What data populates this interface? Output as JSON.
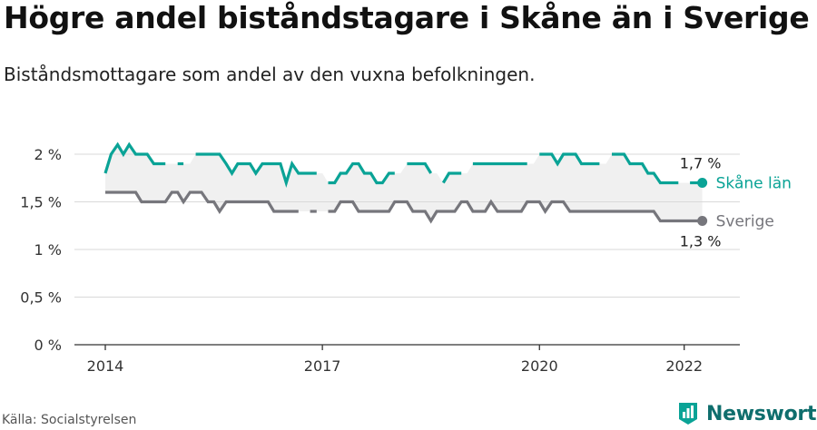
{
  "title": "Högre andel biståndstagare i Skåne än i Sverige",
  "subtitle": "Biståndsmottagare som andel av den vuxna befolkningen.",
  "source": "Källa: Socialstyrelsen",
  "brand": {
    "name": "Newsworthy",
    "icon": "newsworthy-logo-icon"
  },
  "colors": {
    "skane": "#0aa396",
    "sverige": "#76767c",
    "band": "#f0f0f0",
    "grid": "#d9d9d9",
    "axis": "#333333"
  },
  "chart_data": {
    "type": "line",
    "title": "Högre andel biståndstagare i Skåne än i Sverige",
    "subtitle": "Biståndsmottagare som andel av den vuxna befolkningen.",
    "ylim": [
      0,
      2
    ],
    "xlim": [
      2014,
      2022.33
    ],
    "yticks": [
      0,
      0.5,
      1,
      1.5,
      2
    ],
    "ytick_labels": [
      "0 %",
      "0,5 %",
      "1 %",
      "1,5 %",
      "2 %"
    ],
    "xticks": [
      2014,
      2017,
      2020,
      2022
    ],
    "xtick_labels": [
      "2014",
      "2017",
      "2020",
      "2022"
    ],
    "grid": true,
    "annotations": [
      {
        "series": "Skåne län",
        "text": "1,7 %"
      },
      {
        "series": "Sverige",
        "text": "1,3 %"
      }
    ],
    "series": [
      {
        "name": "Skåne län",
        "color": "#0aa396",
        "points": [
          [
            2014.0,
            1.8
          ],
          [
            2014.08,
            2.0
          ],
          [
            2014.17,
            2.1
          ],
          [
            2014.25,
            2.0
          ],
          [
            2014.33,
            2.1
          ],
          [
            2014.42,
            2.0
          ],
          [
            2014.5,
            2.0
          ],
          [
            2014.58,
            2.0
          ],
          [
            2014.67,
            1.9
          ],
          [
            2014.75,
            1.9
          ],
          [
            2014.83,
            1.9
          ],
          [
            2014.92,
            null
          ],
          [
            2015.0,
            1.9
          ],
          [
            2015.08,
            1.9
          ],
          [
            2015.17,
            null
          ],
          [
            2015.25,
            2.0
          ],
          [
            2015.33,
            2.0
          ],
          [
            2015.42,
            2.0
          ],
          [
            2015.5,
            2.0
          ],
          [
            2015.58,
            2.0
          ],
          [
            2015.67,
            1.9
          ],
          [
            2015.75,
            1.8
          ],
          [
            2015.83,
            1.9
          ],
          [
            2015.92,
            1.9
          ],
          [
            2016.0,
            1.9
          ],
          [
            2016.08,
            1.8
          ],
          [
            2016.17,
            1.9
          ],
          [
            2016.25,
            1.9
          ],
          [
            2016.33,
            1.9
          ],
          [
            2016.42,
            1.9
          ],
          [
            2016.5,
            1.7
          ],
          [
            2016.58,
            1.9
          ],
          [
            2016.67,
            1.8
          ],
          [
            2016.75,
            1.8
          ],
          [
            2016.83,
            1.8
          ],
          [
            2016.92,
            1.8
          ],
          [
            2017.0,
            null
          ],
          [
            2017.08,
            1.7
          ],
          [
            2017.17,
            1.7
          ],
          [
            2017.25,
            1.8
          ],
          [
            2017.33,
            1.8
          ],
          [
            2017.42,
            1.9
          ],
          [
            2017.5,
            1.9
          ],
          [
            2017.58,
            1.8
          ],
          [
            2017.67,
            1.8
          ],
          [
            2017.75,
            1.7
          ],
          [
            2017.83,
            1.7
          ],
          [
            2017.92,
            1.8
          ],
          [
            2018.0,
            1.8
          ],
          [
            2018.08,
            null
          ],
          [
            2018.17,
            1.9
          ],
          [
            2018.25,
            1.9
          ],
          [
            2018.33,
            1.9
          ],
          [
            2018.42,
            1.9
          ],
          [
            2018.5,
            1.8
          ],
          [
            2018.58,
            null
          ],
          [
            2018.67,
            1.7
          ],
          [
            2018.75,
            1.8
          ],
          [
            2018.83,
            1.8
          ],
          [
            2018.92,
            1.8
          ],
          [
            2019.0,
            null
          ],
          [
            2019.08,
            1.9
          ],
          [
            2019.17,
            1.9
          ],
          [
            2019.25,
            1.9
          ],
          [
            2019.33,
            1.9
          ],
          [
            2019.42,
            1.9
          ],
          [
            2019.5,
            1.9
          ],
          [
            2019.58,
            1.9
          ],
          [
            2019.67,
            1.9
          ],
          [
            2019.75,
            1.9
          ],
          [
            2019.83,
            1.9
          ],
          [
            2019.92,
            null
          ],
          [
            2020.0,
            2.0
          ],
          [
            2020.08,
            2.0
          ],
          [
            2020.17,
            2.0
          ],
          [
            2020.25,
            1.9
          ],
          [
            2020.33,
            2.0
          ],
          [
            2020.42,
            2.0
          ],
          [
            2020.5,
            2.0
          ],
          [
            2020.58,
            1.9
          ],
          [
            2020.67,
            1.9
          ],
          [
            2020.75,
            1.9
          ],
          [
            2020.83,
            1.9
          ],
          [
            2020.92,
            null
          ],
          [
            2021.0,
            2.0
          ],
          [
            2021.08,
            2.0
          ],
          [
            2021.17,
            2.0
          ],
          [
            2021.25,
            1.9
          ],
          [
            2021.33,
            1.9
          ],
          [
            2021.42,
            1.9
          ],
          [
            2021.5,
            1.8
          ],
          [
            2021.58,
            1.8
          ],
          [
            2021.67,
            1.7
          ],
          [
            2021.75,
            1.7
          ],
          [
            2021.83,
            1.7
          ],
          [
            2021.92,
            1.7
          ],
          [
            2022.0,
            null
          ],
          [
            2022.08,
            1.7
          ],
          [
            2022.17,
            1.7
          ],
          [
            2022.25,
            1.7
          ]
        ]
      },
      {
        "name": "Sverige",
        "color": "#76767c",
        "points": [
          [
            2014.0,
            1.6
          ],
          [
            2014.08,
            1.6
          ],
          [
            2014.17,
            1.6
          ],
          [
            2014.25,
            1.6
          ],
          [
            2014.33,
            1.6
          ],
          [
            2014.42,
            1.6
          ],
          [
            2014.5,
            1.5
          ],
          [
            2014.58,
            1.5
          ],
          [
            2014.67,
            1.5
          ],
          [
            2014.75,
            1.5
          ],
          [
            2014.83,
            1.5
          ],
          [
            2014.92,
            1.6
          ],
          [
            2015.0,
            1.6
          ],
          [
            2015.08,
            1.5
          ],
          [
            2015.17,
            1.6
          ],
          [
            2015.25,
            1.6
          ],
          [
            2015.33,
            1.6
          ],
          [
            2015.42,
            1.5
          ],
          [
            2015.5,
            1.5
          ],
          [
            2015.58,
            1.4
          ],
          [
            2015.67,
            1.5
          ],
          [
            2015.75,
            1.5
          ],
          [
            2015.83,
            1.5
          ],
          [
            2015.92,
            1.5
          ],
          [
            2016.0,
            1.5
          ],
          [
            2016.08,
            1.5
          ],
          [
            2016.17,
            1.5
          ],
          [
            2016.25,
            1.5
          ],
          [
            2016.33,
            1.4
          ],
          [
            2016.42,
            1.4
          ],
          [
            2016.5,
            1.4
          ],
          [
            2016.58,
            1.4
          ],
          [
            2016.67,
            1.4
          ],
          [
            2016.75,
            null
          ],
          [
            2016.83,
            1.4
          ],
          [
            2016.92,
            1.4
          ],
          [
            2017.0,
            null
          ],
          [
            2017.08,
            1.4
          ],
          [
            2017.17,
            1.4
          ],
          [
            2017.25,
            1.5
          ],
          [
            2017.33,
            1.5
          ],
          [
            2017.42,
            1.5
          ],
          [
            2017.5,
            1.4
          ],
          [
            2017.58,
            1.4
          ],
          [
            2017.67,
            1.4
          ],
          [
            2017.75,
            1.4
          ],
          [
            2017.83,
            1.4
          ],
          [
            2017.92,
            1.4
          ],
          [
            2018.0,
            1.5
          ],
          [
            2018.08,
            1.5
          ],
          [
            2018.17,
            1.5
          ],
          [
            2018.25,
            1.4
          ],
          [
            2018.33,
            1.4
          ],
          [
            2018.42,
            1.4
          ],
          [
            2018.5,
            1.3
          ],
          [
            2018.58,
            1.4
          ],
          [
            2018.67,
            1.4
          ],
          [
            2018.75,
            1.4
          ],
          [
            2018.83,
            1.4
          ],
          [
            2018.92,
            1.5
          ],
          [
            2019.0,
            1.5
          ],
          [
            2019.08,
            1.4
          ],
          [
            2019.17,
            1.4
          ],
          [
            2019.25,
            1.4
          ],
          [
            2019.33,
            1.5
          ],
          [
            2019.42,
            1.4
          ],
          [
            2019.5,
            1.4
          ],
          [
            2019.58,
            1.4
          ],
          [
            2019.67,
            1.4
          ],
          [
            2019.75,
            1.4
          ],
          [
            2019.83,
            1.5
          ],
          [
            2019.92,
            1.5
          ],
          [
            2020.0,
            1.5
          ],
          [
            2020.08,
            1.4
          ],
          [
            2020.17,
            1.5
          ],
          [
            2020.25,
            1.5
          ],
          [
            2020.33,
            1.5
          ],
          [
            2020.42,
            1.4
          ],
          [
            2020.5,
            1.4
          ],
          [
            2020.58,
            1.4
          ],
          [
            2020.67,
            1.4
          ],
          [
            2020.75,
            1.4
          ],
          [
            2020.83,
            1.4
          ],
          [
            2020.92,
            1.4
          ],
          [
            2021.0,
            1.4
          ],
          [
            2021.08,
            1.4
          ],
          [
            2021.17,
            1.4
          ],
          [
            2021.25,
            1.4
          ],
          [
            2021.33,
            1.4
          ],
          [
            2021.42,
            1.4
          ],
          [
            2021.5,
            1.4
          ],
          [
            2021.58,
            1.4
          ],
          [
            2021.67,
            1.3
          ],
          [
            2021.75,
            1.3
          ],
          [
            2021.83,
            1.3
          ],
          [
            2021.92,
            1.3
          ],
          [
            2022.0,
            1.3
          ],
          [
            2022.08,
            1.3
          ],
          [
            2022.17,
            1.3
          ],
          [
            2022.25,
            1.3
          ]
        ]
      }
    ]
  }
}
